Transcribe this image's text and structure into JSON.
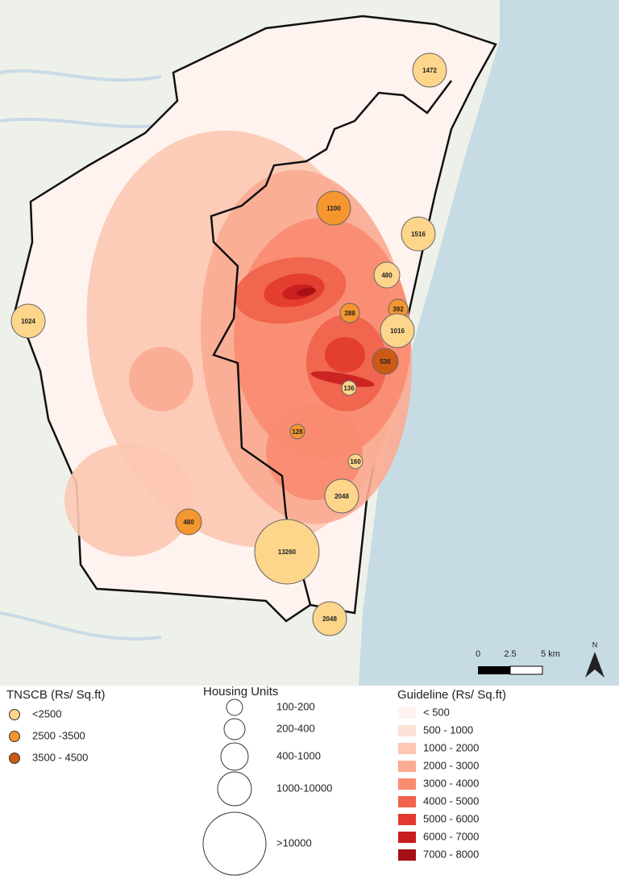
{
  "map": {
    "bubbles": [
      {
        "units": 1472,
        "tnscb": "<2500",
        "housing": "1000-10000"
      },
      {
        "units": 1100,
        "tnscb": "2500 -3500",
        "housing": "1000-10000"
      },
      {
        "units": 1516,
        "tnscb": "<2500",
        "housing": "1000-10000"
      },
      {
        "units": 480,
        "tnscb": "<2500",
        "housing": "400-1000"
      },
      {
        "units": 1024,
        "tnscb": "<2500",
        "housing": "1000-10000"
      },
      {
        "units": 288,
        "tnscb": "2500 -3500",
        "housing": "200-400"
      },
      {
        "units": 392,
        "tnscb": "2500 -3500",
        "housing": "200-400"
      },
      {
        "units": 1016,
        "tnscb": "<2500",
        "housing": "1000-10000"
      },
      {
        "units": 536,
        "tnscb": "3500 - 4500",
        "housing": "400-1000"
      },
      {
        "units": 136,
        "tnscb": "<2500",
        "housing": "100-200"
      },
      {
        "units": 128,
        "tnscb": "2500 -3500",
        "housing": "100-200"
      },
      {
        "units": 160,
        "tnscb": "<2500",
        "housing": "100-200"
      },
      {
        "units": 2048,
        "tnscb": "<2500",
        "housing": "1000-10000"
      },
      {
        "units": 480,
        "tnscb": "2500 -3500",
        "housing": "400-1000"
      },
      {
        "units": 13260,
        "tnscb": "<2500",
        "housing": ">10000"
      },
      {
        "units": 2048,
        "tnscb": "<2500",
        "housing": "1000-10000"
      }
    ],
    "scale_bar": {
      "labels": [
        "0",
        "2.5",
        "5 km"
      ],
      "north": "N"
    }
  },
  "legends": {
    "tnscb": {
      "title": "TNSCB (Rs/ Sq.ft)",
      "items": [
        {
          "label": "<2500",
          "color": "#fdd58b"
        },
        {
          "label": "2500 -3500",
          "color": "#f5962f"
        },
        {
          "label": "3500 - 4500",
          "color": "#cc5a14"
        }
      ]
    },
    "housing": {
      "title": "Housing Units",
      "items": [
        {
          "label": "100-200"
        },
        {
          "label": "200-400"
        },
        {
          "label": "400-1000"
        },
        {
          "label": "1000-10000"
        },
        {
          "label": ">10000"
        }
      ]
    },
    "guideline": {
      "title": "Guideline (Rs/ Sq.ft)",
      "items": [
        {
          "label": "< 500",
          "color": "#fff3ef"
        },
        {
          "label": "500 - 1000",
          "color": "#fde0d6"
        },
        {
          "label": "1000 - 2000",
          "color": "#fcc8b3"
        },
        {
          "label": "2000 - 3000",
          "color": "#fbab92"
        },
        {
          "label": "3000 - 4000",
          "color": "#f98b70"
        },
        {
          "label": "4000 - 5000",
          "color": "#f0624a"
        },
        {
          "label": "5000 - 6000",
          "color": "#e23a2e"
        },
        {
          "label": "6000 - 7000",
          "color": "#c81d1f"
        },
        {
          "label": "7000 - 8000",
          "color": "#a50f15"
        }
      ]
    }
  }
}
